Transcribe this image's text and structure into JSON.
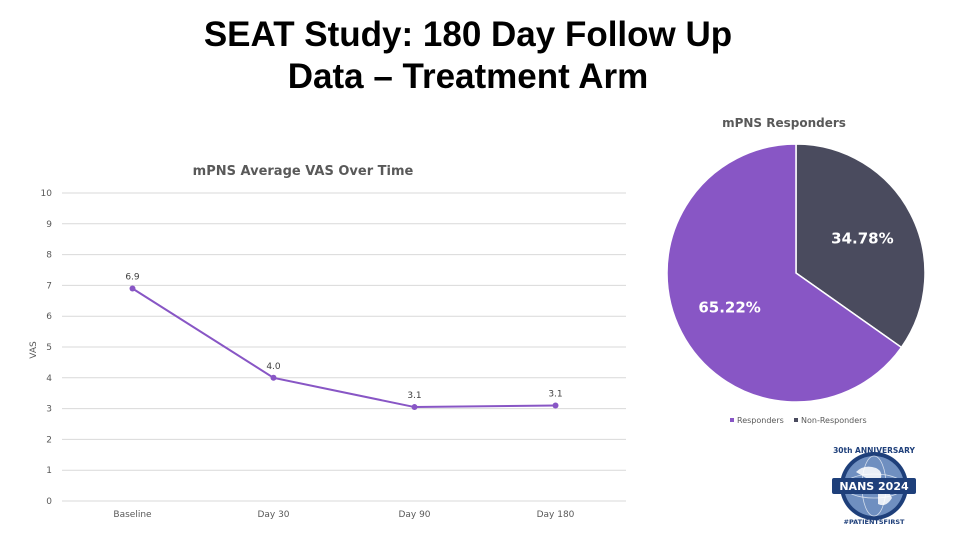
{
  "slide": {
    "title_line1": "SEAT Study: 180 Day Follow Up",
    "title_line2": "Data – Treatment Arm"
  },
  "colors": {
    "purple": "#8856c5",
    "dark": "#4a4b5e",
    "grid": "#d9d9d9",
    "text": "#595959"
  },
  "logo": {
    "text_top": "30th ANNIVERSARY",
    "text_main": "NANS 2024",
    "text_bottom": "#PATIENTSFIRST"
  },
  "chart_data": [
    {
      "type": "line",
      "title": "mPNS Average VAS Over Time",
      "xlabel": "",
      "ylabel": "VAS",
      "categories": [
        "Baseline",
        "Day 30",
        "Day 90",
        "Day 180"
      ],
      "series": [
        {
          "values": [
            6.9,
            4.0,
            3.05,
            3.1
          ],
          "labels": [
            "6.9",
            "4.0",
            "3.1",
            "3.1"
          ]
        }
      ],
      "ylim": [
        0,
        10
      ],
      "yticks": [
        "0",
        "1",
        "2",
        "3",
        "4",
        "5",
        "6",
        "7",
        "8",
        "9",
        "10"
      ],
      "grid": true,
      "legend": "none"
    },
    {
      "type": "pie",
      "title": "mPNS Responders",
      "slices": [
        {
          "label": "Responders",
          "value": 65.22,
          "text": "65.22%"
        },
        {
          "label": "Non-Responders",
          "value": 34.78,
          "text": "34.78%"
        }
      ],
      "legend": "bottom"
    }
  ]
}
